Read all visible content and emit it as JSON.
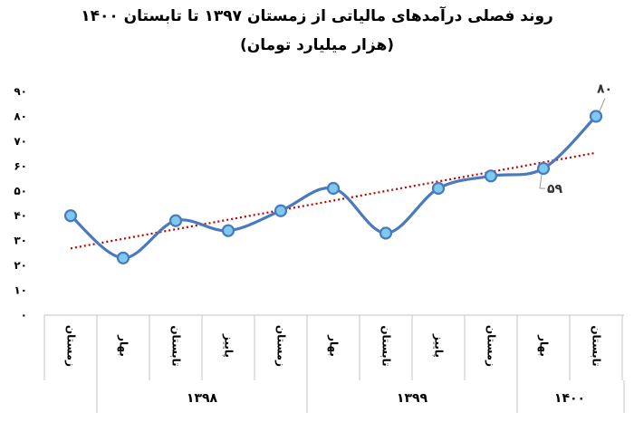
{
  "chart_data": {
    "type": "line",
    "title": "روند فصلی  درآمدهای مالیاتی از زمستان ۱۳۹۷ تا تابستان ۱۴۰۰",
    "subtitle": "(هزار میلیارد تومان)",
    "categories": [
      "زمستان",
      "بهار",
      "تابستان",
      "پاییز",
      "زمستان",
      "بهار",
      "تابستان",
      "پاییز",
      "زمستان",
      "بهار",
      "تابستان"
    ],
    "groups": [
      {
        "label": "۱۳۹۸",
        "span": [
          1,
          4
        ]
      },
      {
        "label": "۱۳۹۹",
        "span": [
          5,
          8
        ]
      },
      {
        "label": "۱۴۰۰",
        "span": [
          9,
          10
        ]
      }
    ],
    "series": [
      {
        "values": [
          40,
          23,
          38,
          34,
          42,
          51,
          33,
          51,
          56,
          59,
          80
        ],
        "color": "#4a79bd",
        "marker_fill": "#7ccaf0"
      }
    ],
    "trendline": {
      "type": "linear",
      "style": "dotted",
      "color": "#c00000"
    },
    "data_labels": [
      {
        "index": 9,
        "text": "۵۹"
      },
      {
        "index": 10,
        "text": "۸۰"
      }
    ],
    "ylim": [
      0,
      90
    ],
    "yticks": [
      "۰",
      "۱۰",
      "۲۰",
      "۳۰",
      "۴۰",
      "۵۰",
      "۶۰",
      "۷۰",
      "۸۰",
      "۹۰"
    ],
    "grid": false,
    "legend": "none"
  }
}
